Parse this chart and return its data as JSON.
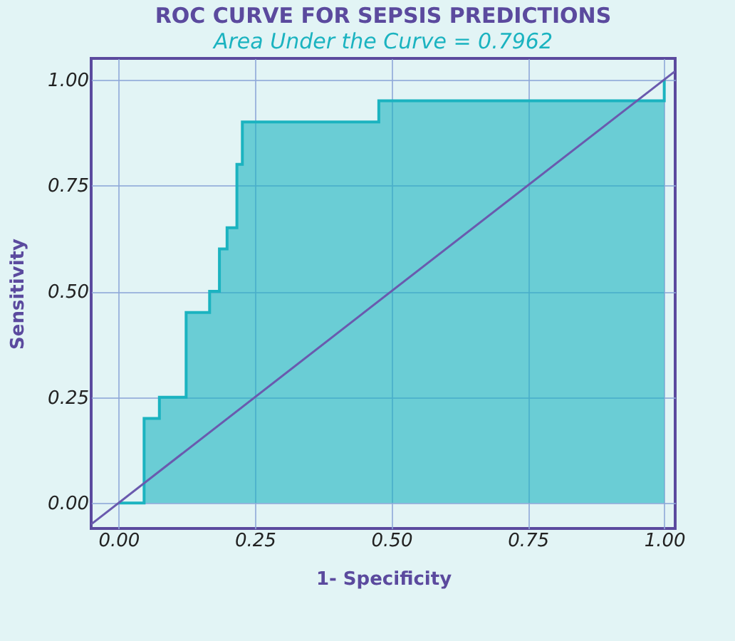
{
  "chart_data": {
    "type": "area",
    "title": "ROC CURVE FOR SEPSIS PREDICTIONS",
    "subtitle": "Area Under the Curve = 0.7962",
    "xlabel": "1- Specificity",
    "ylabel": "Sensitivity",
    "series": [
      {
        "color": "#1bb3c0",
        "x": [
          0,
          0.047,
          0.075,
          0.124,
          0.167,
          0.185,
          0.199,
          0.217,
          0.227,
          0.477,
          1
        ],
        "values": [
          0,
          0.2,
          0.25,
          0.45,
          0.5,
          0.6,
          0.65,
          0.8,
          0.9,
          0.95,
          1
        ]
      },
      {
        "type": "line",
        "color": "#6a5aae",
        "x": [
          -0.05,
          1.02
        ],
        "values": [
          -0.05,
          1.02
        ]
      }
    ],
    "xlim": [
      -0.05,
      1.02
    ],
    "ylim": [
      -0.06,
      1.05
    ],
    "xticks": [
      {
        "value": 0,
        "label": "0.00"
      },
      {
        "value": 0.25,
        "label": "0.25"
      },
      {
        "value": 0.5,
        "label": "0.50"
      },
      {
        "value": 0.75,
        "label": "0.75"
      },
      {
        "value": 1,
        "label": "1.00"
      }
    ],
    "yticks": [
      {
        "value": 0,
        "label": "0.00"
      },
      {
        "value": 0.25,
        "label": "0.25"
      },
      {
        "value": 0.5,
        "label": "0.50"
      },
      {
        "value": 0.75,
        "label": "0.75"
      },
      {
        "value": 1,
        "label": "1.00"
      }
    ],
    "grid": true
  }
}
